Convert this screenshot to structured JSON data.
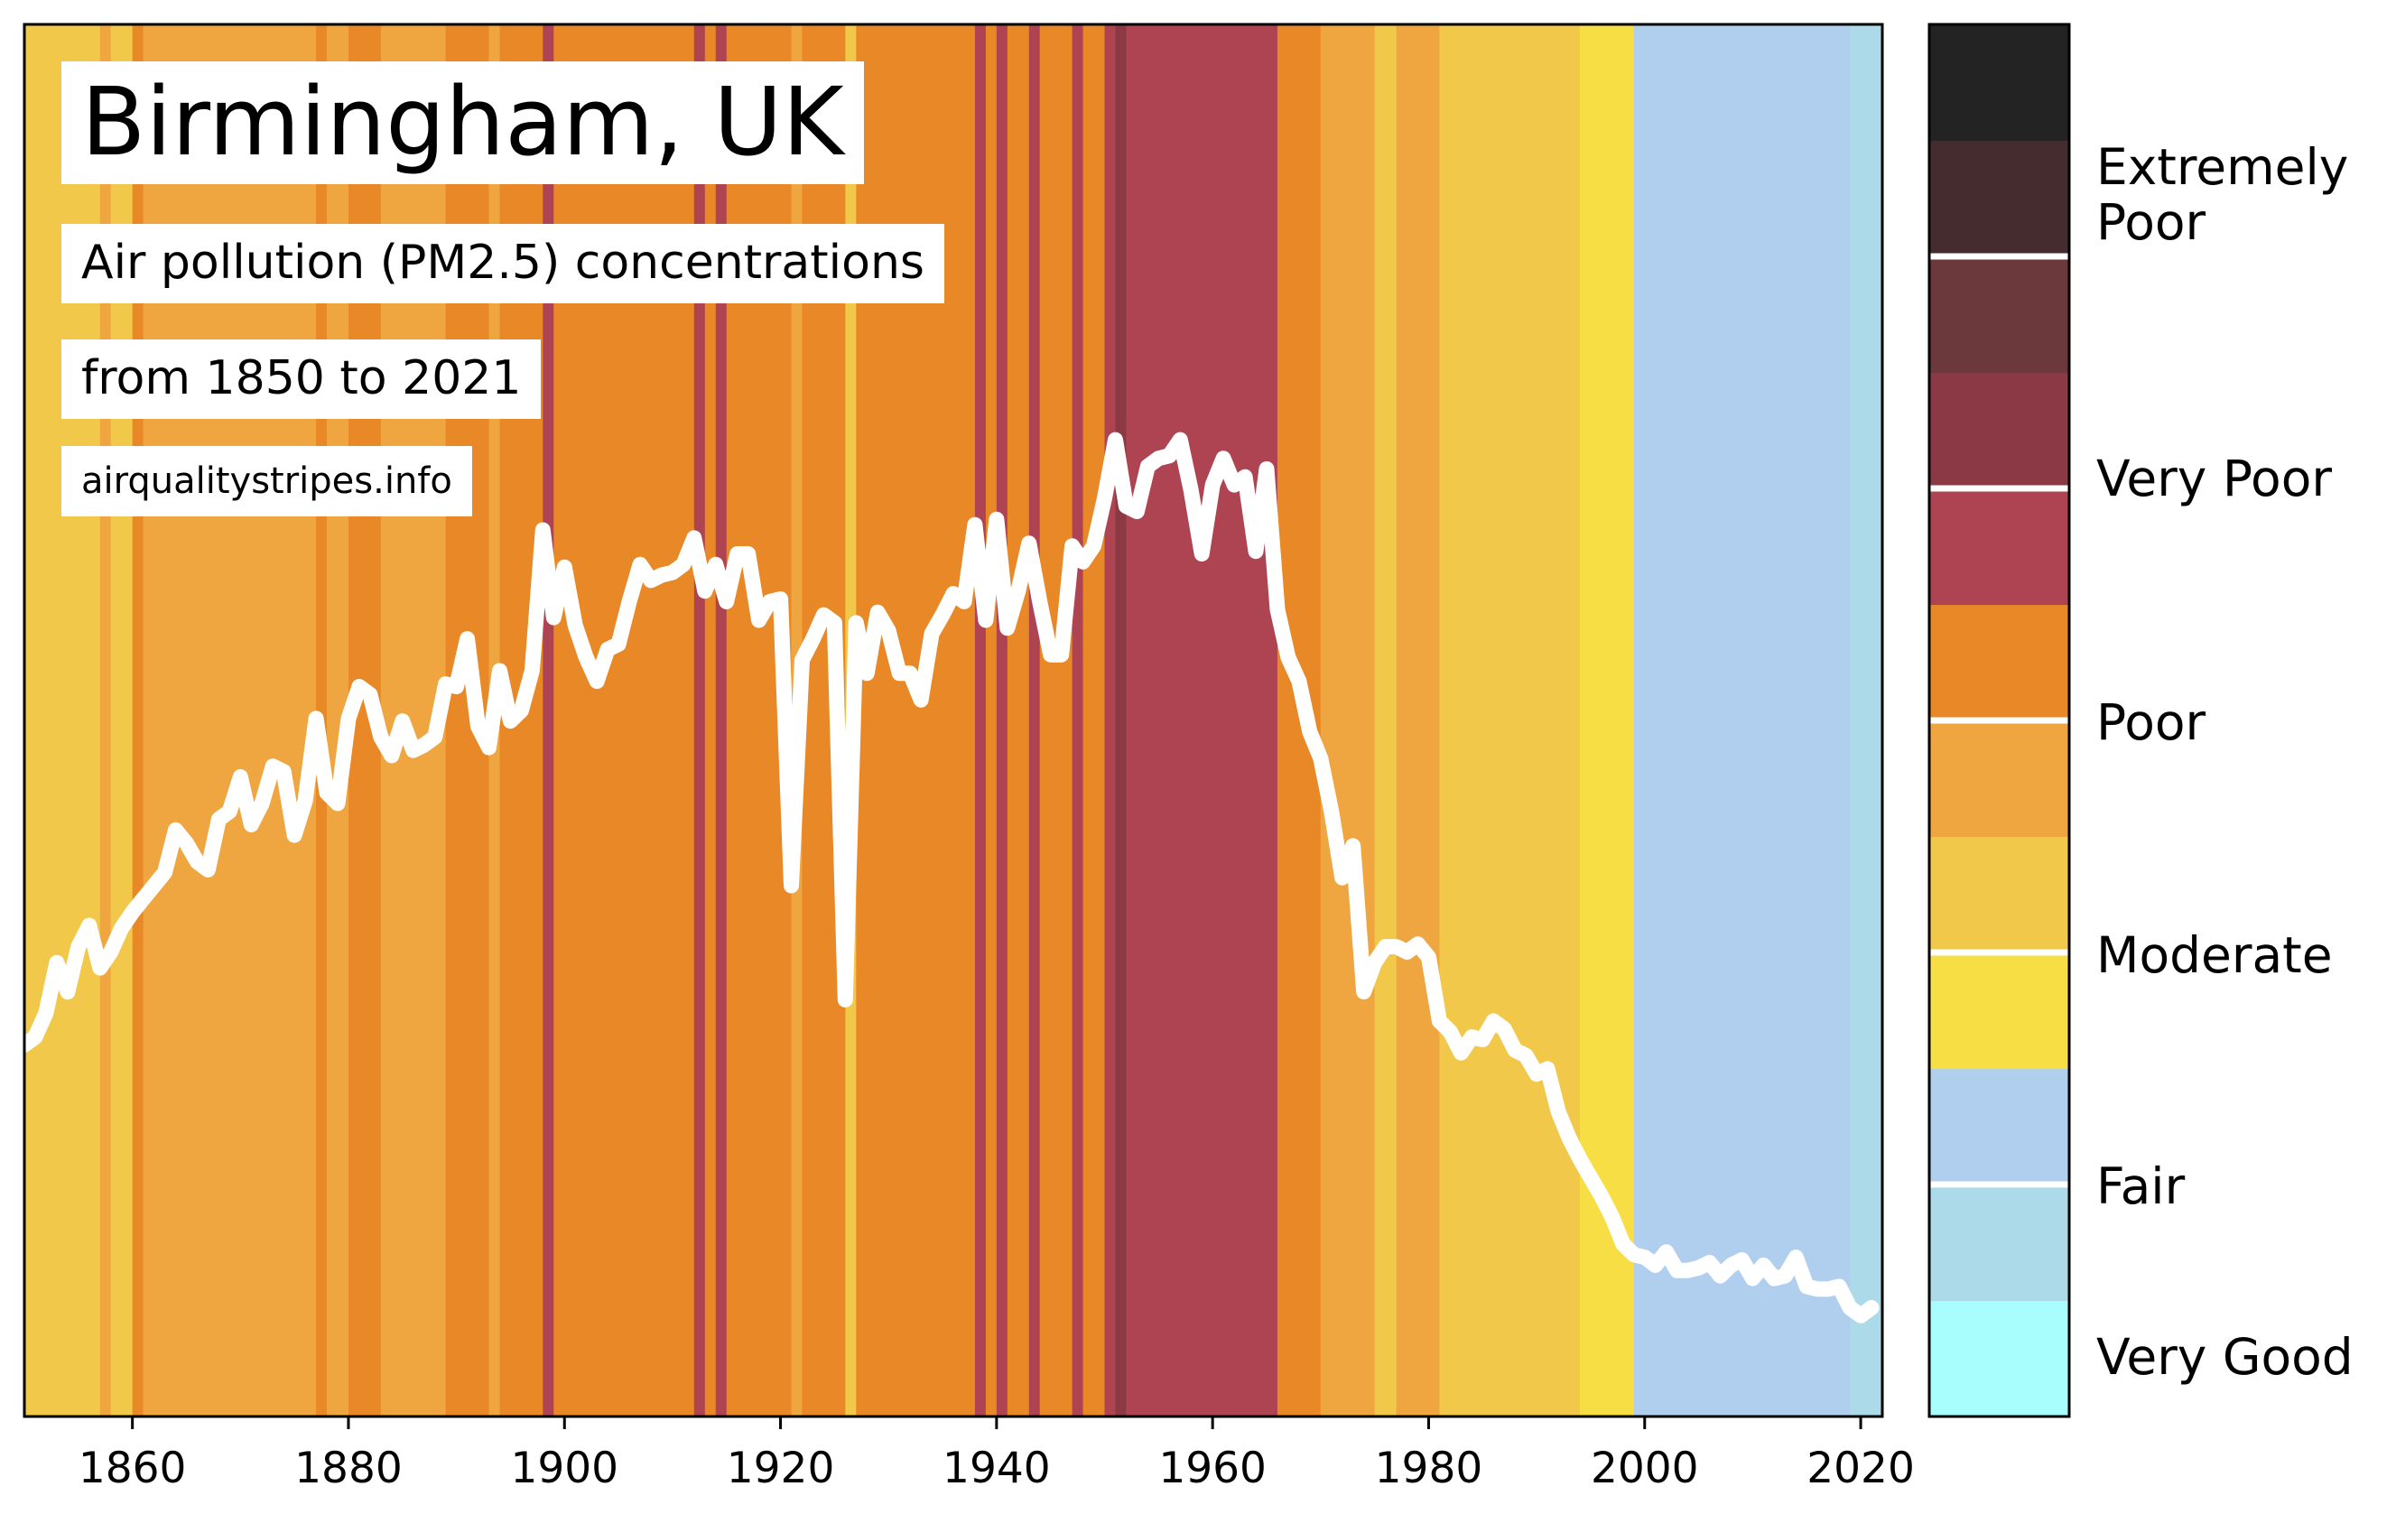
{
  "title": "Birmingham, UK",
  "subtitle": "Air pollution (PM2.5) concentrations",
  "range": "from 1850 to 2021",
  "source": "airqualitystripes.info",
  "colors": {
    "very_good": "#a8fdfd",
    "fair_light": "#acdae8",
    "fair": "#b0cfee",
    "moderate_yellow": "#f7de45",
    "moderate": "#f2c84a",
    "poor_light": "#f0a640",
    "poor": "#e98826",
    "very_poor_light": "#ae4451",
    "very_poor": "#8b3a45",
    "extremely_poor_1": "#6b393b",
    "extremely_poor_2": "#452d2f",
    "extremely_poor_3": "#232323",
    "line": "#ffffff"
  },
  "legend": {
    "segments": [
      "very_good",
      "fair_light",
      "fair",
      "moderate_yellow",
      "moderate",
      "poor_light",
      "poor",
      "very_poor_light",
      "very_poor",
      "extremely_poor_1",
      "extremely_poor_2",
      "extremely_poor_3"
    ],
    "dividers_after_segment": [
      1,
      3,
      5,
      7,
      9
    ],
    "categories": [
      "Very Good",
      "Fair",
      "Moderate",
      "Poor",
      "Very Poor",
      "Extremely Poor"
    ]
  },
  "chart_data": {
    "type": "line",
    "title": "Birmingham, UK",
    "subtitle": "Air pollution (PM2.5) concentrations",
    "xlim": [
      1850,
      2022
    ],
    "x_ticks": [
      1860,
      1880,
      1900,
      1920,
      1940,
      1960,
      1980,
      2000,
      2020
    ],
    "y_axis_shown": false,
    "grid": false,
    "legend": "colorbar-right",
    "stripes": [
      {
        "from": 1850,
        "to": 1857,
        "level": "moderate"
      },
      {
        "from": 1857,
        "to": 1858,
        "level": "poor_light"
      },
      {
        "from": 1858,
        "to": 1860,
        "level": "moderate"
      },
      {
        "from": 1860,
        "to": 1861,
        "level": "poor"
      },
      {
        "from": 1861,
        "to": 1877,
        "level": "poor_light"
      },
      {
        "from": 1877,
        "to": 1878,
        "level": "poor"
      },
      {
        "from": 1878,
        "to": 1880,
        "level": "poor_light"
      },
      {
        "from": 1880,
        "to": 1883,
        "level": "poor"
      },
      {
        "from": 1883,
        "to": 1889,
        "level": "poor_light"
      },
      {
        "from": 1889,
        "to": 1893,
        "level": "poor"
      },
      {
        "from": 1893,
        "to": 1894,
        "level": "poor_light"
      },
      {
        "from": 1894,
        "to": 1898,
        "level": "poor"
      },
      {
        "from": 1898,
        "to": 1899,
        "level": "very_poor_light"
      },
      {
        "from": 1899,
        "to": 1912,
        "level": "poor"
      },
      {
        "from": 1912,
        "to": 1913,
        "level": "very_poor_light"
      },
      {
        "from": 1913,
        "to": 1914,
        "level": "poor"
      },
      {
        "from": 1914,
        "to": 1915,
        "level": "very_poor_light"
      },
      {
        "from": 1915,
        "to": 1921,
        "level": "poor"
      },
      {
        "from": 1921,
        "to": 1922,
        "level": "poor_light"
      },
      {
        "from": 1922,
        "to": 1926,
        "level": "poor"
      },
      {
        "from": 1926,
        "to": 1927,
        "level": "moderate"
      },
      {
        "from": 1927,
        "to": 1938,
        "level": "poor"
      },
      {
        "from": 1938,
        "to": 1939,
        "level": "very_poor_light"
      },
      {
        "from": 1939,
        "to": 1940,
        "level": "poor"
      },
      {
        "from": 1940,
        "to": 1941,
        "level": "very_poor_light"
      },
      {
        "from": 1941,
        "to": 1943,
        "level": "poor"
      },
      {
        "from": 1943,
        "to": 1944,
        "level": "very_poor_light"
      },
      {
        "from": 1944,
        "to": 1947,
        "level": "poor"
      },
      {
        "from": 1947,
        "to": 1948,
        "level": "very_poor_light"
      },
      {
        "from": 1948,
        "to": 1950,
        "level": "poor"
      },
      {
        "from": 1950,
        "to": 1951,
        "level": "very_poor_light"
      },
      {
        "from": 1951,
        "to": 1952,
        "level": "very_poor"
      },
      {
        "from": 1952,
        "to": 1966,
        "level": "very_poor_light"
      },
      {
        "from": 1966,
        "to": 1970,
        "level": "poor"
      },
      {
        "from": 1970,
        "to": 1975,
        "level": "poor_light"
      },
      {
        "from": 1975,
        "to": 1977,
        "level": "moderate"
      },
      {
        "from": 1977,
        "to": 1981,
        "level": "poor_light"
      },
      {
        "from": 1981,
        "to": 1994,
        "level": "moderate"
      },
      {
        "from": 1994,
        "to": 1999,
        "level": "moderate_yellow"
      },
      {
        "from": 1999,
        "to": 2019,
        "level": "fair"
      },
      {
        "from": 2019,
        "to": 2022,
        "level": "fair_light"
      }
    ],
    "series": [
      {
        "x": [
          1850,
          1851,
          1852,
          1853,
          1854,
          1855,
          1856,
          1857,
          1858,
          1859,
          1860,
          1861,
          1862,
          1863,
          1864,
          1865,
          1866,
          1867,
          1868,
          1869,
          1870,
          1871,
          1872,
          1873,
          1874,
          1875,
          1876,
          1877,
          1878,
          1879,
          1880,
          1881,
          1882,
          1883,
          1884,
          1885,
          1886,
          1887,
          1888,
          1889,
          1890,
          1891,
          1892,
          1893,
          1894,
          1895,
          1896,
          1897,
          1898,
          1899,
          1900,
          1901,
          1902,
          1903,
          1904,
          1905,
          1906,
          1907,
          1908,
          1909,
          1910,
          1911,
          1912,
          1913,
          1914,
          1915,
          1916,
          1917,
          1918,
          1919,
          1920,
          1921,
          1922,
          1923,
          1924,
          1925,
          1926,
          1927,
          1928,
          1929,
          1930,
          1931,
          1932,
          1933,
          1934,
          1935,
          1936,
          1937,
          1938,
          1939,
          1940,
          1941,
          1942,
          1943,
          1944,
          1945,
          1946,
          1947,
          1948,
          1949,
          1950,
          1951,
          1952,
          1953,
          1954,
          1955,
          1956,
          1957,
          1958,
          1959,
          1960,
          1961,
          1962,
          1963,
          1964,
          1965,
          1966,
          1967,
          1968,
          1969,
          1970,
          1971,
          1972,
          1973,
          1974,
          1975,
          1976,
          1977,
          1978,
          1979,
          1980,
          1981,
          1982,
          1983,
          1984,
          1985,
          1986,
          1987,
          1988,
          1989,
          1990,
          1991,
          1992,
          1993,
          1994,
          1995,
          1996,
          1997,
          1998,
          1999,
          2000,
          2001,
          2002,
          2003,
          2004,
          2005,
          2006,
          2007,
          2008,
          2009,
          2010,
          2011,
          2012,
          2013,
          2014,
          2015,
          2016,
          2017,
          2018,
          2019,
          2020,
          2021
        ],
        "y": [
          21.5,
          21.8,
          22.7,
          24.6,
          23.5,
          25.2,
          26.0,
          24.4,
          25.0,
          25.9,
          26.5,
          27.0,
          27.5,
          28.0,
          29.6,
          29.1,
          28.4,
          28.1,
          30.0,
          30.3,
          31.6,
          29.8,
          30.6,
          32.0,
          31.8,
          29.4,
          30.7,
          33.8,
          31.0,
          30.6,
          33.8,
          35.0,
          34.7,
          33.1,
          32.4,
          33.7,
          32.6,
          32.8,
          33.1,
          35.1,
          35.0,
          36.8,
          33.5,
          32.7,
          35.6,
          33.7,
          34.1,
          35.6,
          40.9,
          37.6,
          39.5,
          37.3,
          36.1,
          35.2,
          36.4,
          36.6,
          38.2,
          39.6,
          39.0,
          39.2,
          39.3,
          39.6,
          40.6,
          38.6,
          39.6,
          38.2,
          40.0,
          40.0,
          37.5,
          38.2,
          38.3,
          27.5,
          36.0,
          36.8,
          37.7,
          37.4,
          23.2,
          37.4,
          35.5,
          37.8,
          37.1,
          35.5,
          35.5,
          34.5,
          37.0,
          37.7,
          38.5,
          38.2,
          41.1,
          37.5,
          41.3,
          37.2,
          38.6,
          40.4,
          38.2,
          36.2,
          36.2,
          40.3,
          39.7,
          40.3,
          42.1,
          44.3,
          41.8,
          41.6,
          43.3,
          43.6,
          43.7,
          44.3,
          42.4,
          40.0,
          42.6,
          43.6,
          42.6,
          42.9,
          40.1,
          43.2,
          37.9,
          36.1,
          35.2,
          33.3,
          32.3,
          30.3,
          27.8,
          29.0,
          23.5,
          24.6,
          25.2,
          25.2,
          25.0,
          25.3,
          24.8,
          22.4,
          22.0,
          21.2,
          21.8,
          21.7,
          22.4,
          22.1,
          21.3,
          21.1,
          20.4,
          20.6,
          19.0,
          18.0,
          17.2,
          16.5,
          15.8,
          15.0,
          14.0,
          13.6,
          13.5,
          13.2,
          13.7,
          13.0,
          13.0,
          13.1,
          13.3,
          12.8,
          13.2,
          13.4,
          12.7,
          13.2,
          12.7,
          12.8,
          13.5,
          12.4,
          12.3,
          12.3,
          12.4,
          11.6,
          11.3,
          11.6
        ]
      }
    ]
  }
}
